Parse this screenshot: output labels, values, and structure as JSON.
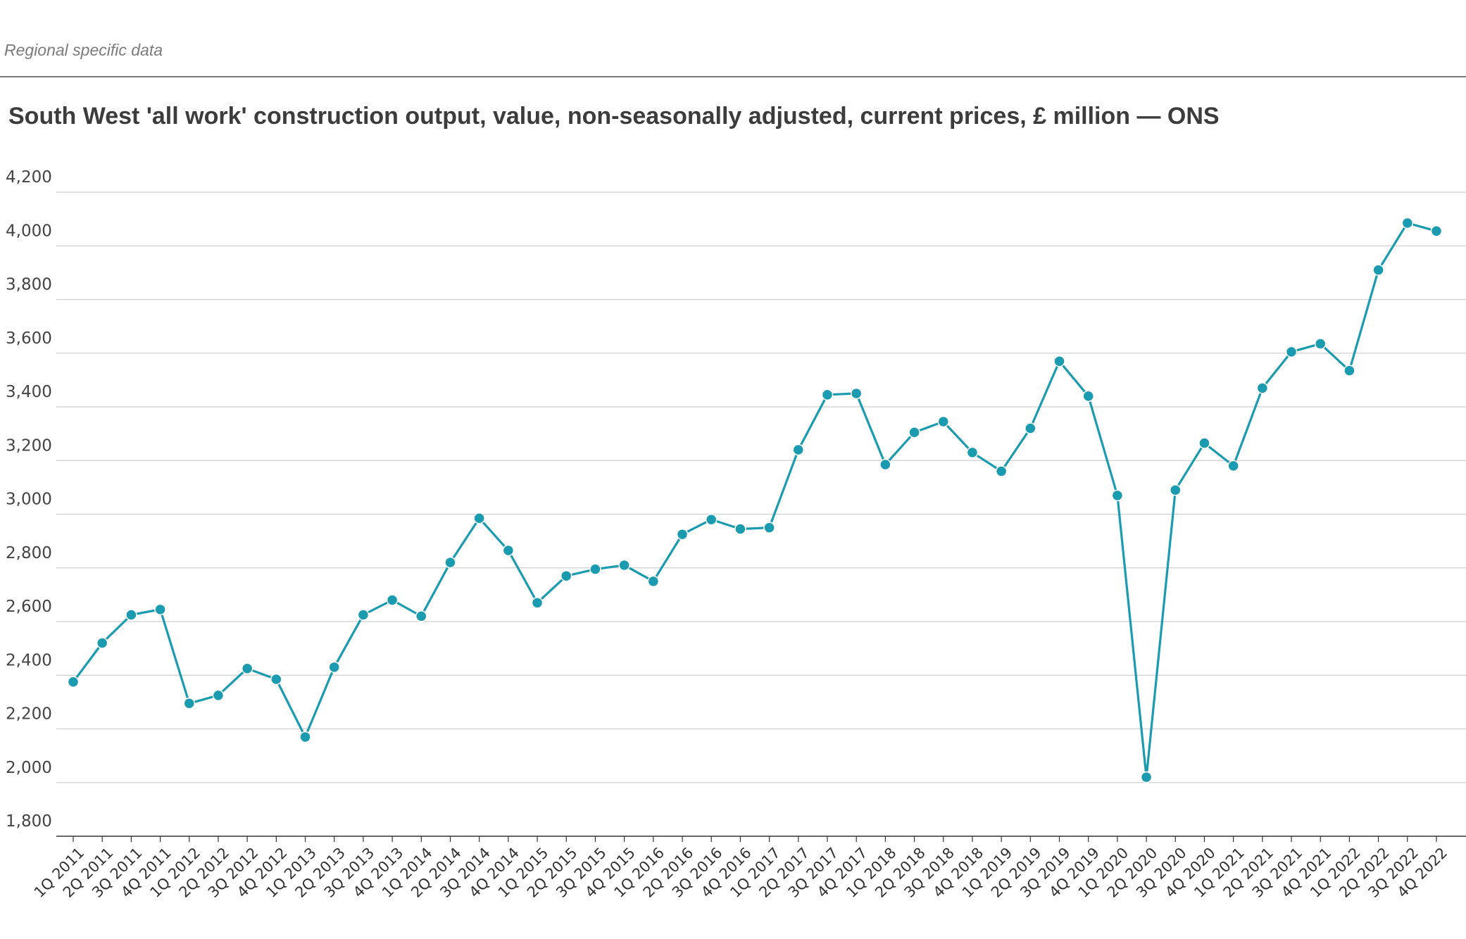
{
  "header": {
    "section_label": "Regional specific data"
  },
  "chart_data": {
    "type": "line",
    "title": "South West 'all work' construction output, value, non-seasonally adjusted, current prices, £ million — ONS",
    "xlabel": "",
    "ylabel": "",
    "ylim": [
      1800,
      4200
    ],
    "yticks": [
      "1,800",
      "2,000",
      "2,200",
      "2,400",
      "2,600",
      "2,800",
      "3,000",
      "3,200",
      "3,400",
      "3,600",
      "3,800",
      "4,000",
      "4,200"
    ],
    "ytick_values": [
      1800,
      2000,
      2200,
      2400,
      2600,
      2800,
      3000,
      3200,
      3400,
      3600,
      3800,
      4000,
      4200
    ],
    "grid": true,
    "line_color": "#1a9bb0",
    "categories": [
      "1Q 2011",
      "2Q 2011",
      "3Q 2011",
      "4Q 2011",
      "1Q 2012",
      "2Q 2012",
      "3Q 2012",
      "4Q 2012",
      "1Q 2013",
      "2Q 2013",
      "3Q 2013",
      "4Q 2013",
      "1Q 2014",
      "2Q 2014",
      "3Q 2014",
      "4Q 2014",
      "1Q 2015",
      "2Q 2015",
      "3Q 2015",
      "4Q 2015",
      "1Q 2016",
      "2Q 2016",
      "3Q 2016",
      "4Q 2016",
      "1Q 2017",
      "2Q 2017",
      "3Q 2017",
      "4Q 2017",
      "1Q 2018",
      "2Q 2018",
      "3Q 2018",
      "4Q 2018",
      "1Q 2019",
      "2Q 2019",
      "3Q 2019",
      "4Q 2019",
      "1Q 2020",
      "2Q 2020",
      "3Q 2020",
      "4Q 2020",
      "1Q 2021",
      "2Q 2021",
      "3Q 2021",
      "4Q 2021",
      "1Q 2022",
      "2Q 2022",
      "3Q 2022",
      "4Q 2022"
    ],
    "values": [
      2375,
      2520,
      2625,
      2645,
      2295,
      2325,
      2425,
      2385,
      2170,
      2430,
      2625,
      2680,
      2620,
      2820,
      2985,
      2865,
      2670,
      2770,
      2795,
      2810,
      2750,
      2925,
      2980,
      2945,
      2950,
      3240,
      3445,
      3450,
      3185,
      3305,
      3345,
      3230,
      3160,
      3320,
      3570,
      3440,
      3070,
      2020,
      3090,
      3265,
      3180,
      3470,
      3605,
      3635,
      3535,
      3910,
      4085,
      4055
    ]
  }
}
